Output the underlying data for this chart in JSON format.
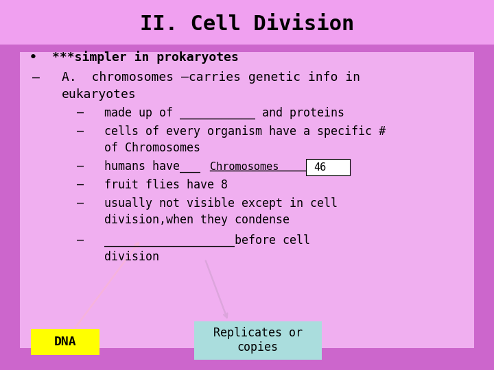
{
  "title": "II. Cell Division",
  "title_fontsize": 22,
  "title_bg": "#f0a0f0",
  "content_bg": "#f5b8f5",
  "slide_bg_color": "#cc66cc",
  "font_family": "monospace",
  "dna_text": "DNA",
  "dna_bg": "#ffff00",
  "replicates_text": "Replicates or\ncopies",
  "replicates_bg": "#aadddd",
  "chromosomes_label": "Chromosomes",
  "chromosomes_46": "46",
  "arrow_orange": "#ff8800",
  "arrow_black": "#000000"
}
